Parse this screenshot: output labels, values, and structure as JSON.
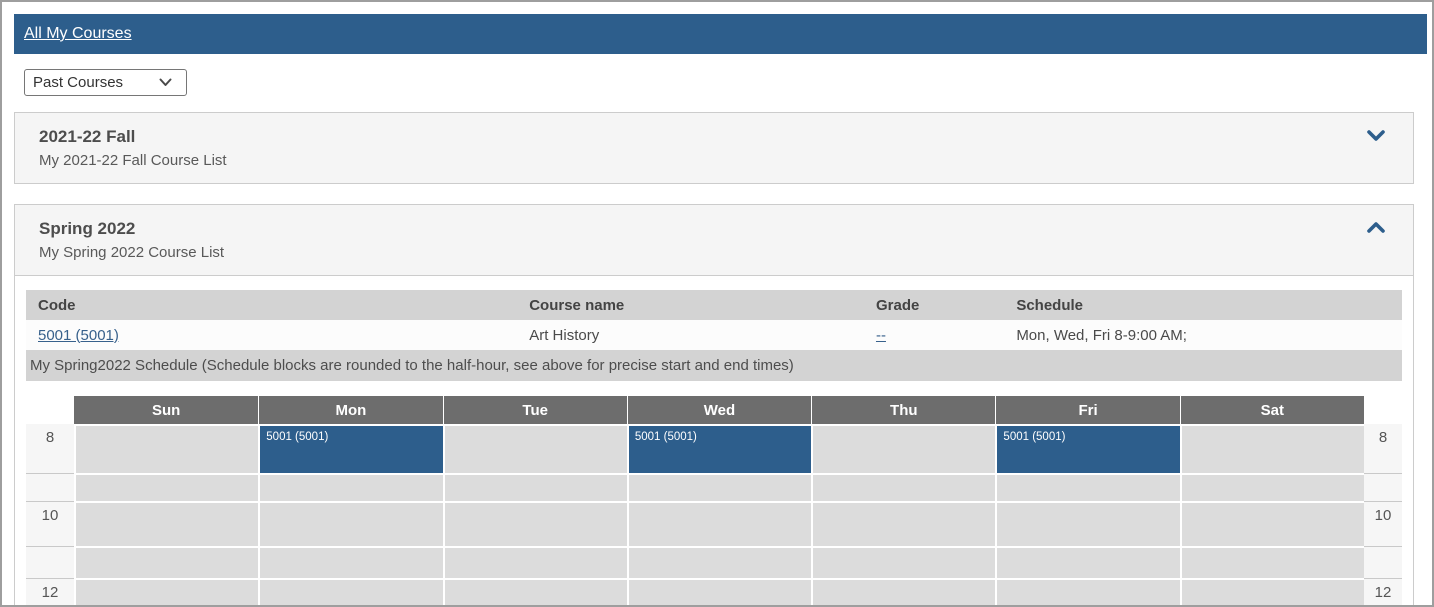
{
  "colors": {
    "header_blue": "#2d5e8c",
    "link_blue": "#38618c",
    "day_header_gray": "#6d6d6d",
    "table_header_gray": "#d3d3d3",
    "cell_gray": "#dcdcdc",
    "section_bg": "#f5f5f5",
    "border_gray": "#cccccc"
  },
  "topbar": {
    "title": "All My Courses"
  },
  "filter": {
    "selected": "Past Courses"
  },
  "sections": {
    "fall": {
      "title": "2021-22 Fall",
      "subtitle": "My 2021-22 Fall Course List",
      "state": "collapsed"
    },
    "spring": {
      "title": "Spring 2022",
      "subtitle": "My Spring 2022 Course List",
      "state": "expanded"
    }
  },
  "course_table": {
    "headers": {
      "code": "Code",
      "name": "Course name",
      "grade": "Grade",
      "schedule": "Schedule"
    },
    "rows": [
      {
        "code": "5001 (5001)",
        "name": "Art History",
        "grade": "--",
        "schedule": "Mon, Wed, Fri 8-9:00 AM;"
      }
    ]
  },
  "schedule": {
    "note": "My Spring2022 Schedule (Schedule blocks are rounded to the half-hour, see above for precise start and end times)",
    "days": [
      "Sun",
      "Mon",
      "Tue",
      "Wed",
      "Thu",
      "Fri",
      "Sat"
    ],
    "time_rows": [
      {
        "label": "8"
      },
      {
        "label": ""
      },
      {
        "label": "10"
      },
      {
        "label": ""
      },
      {
        "label": "12"
      }
    ],
    "events": [
      {
        "day": "Mon",
        "row": 0,
        "label": "5001 (5001)"
      },
      {
        "day": "Wed",
        "row": 0,
        "label": "5001 (5001)"
      },
      {
        "day": "Fri",
        "row": 0,
        "label": "5001 (5001)"
      }
    ]
  }
}
